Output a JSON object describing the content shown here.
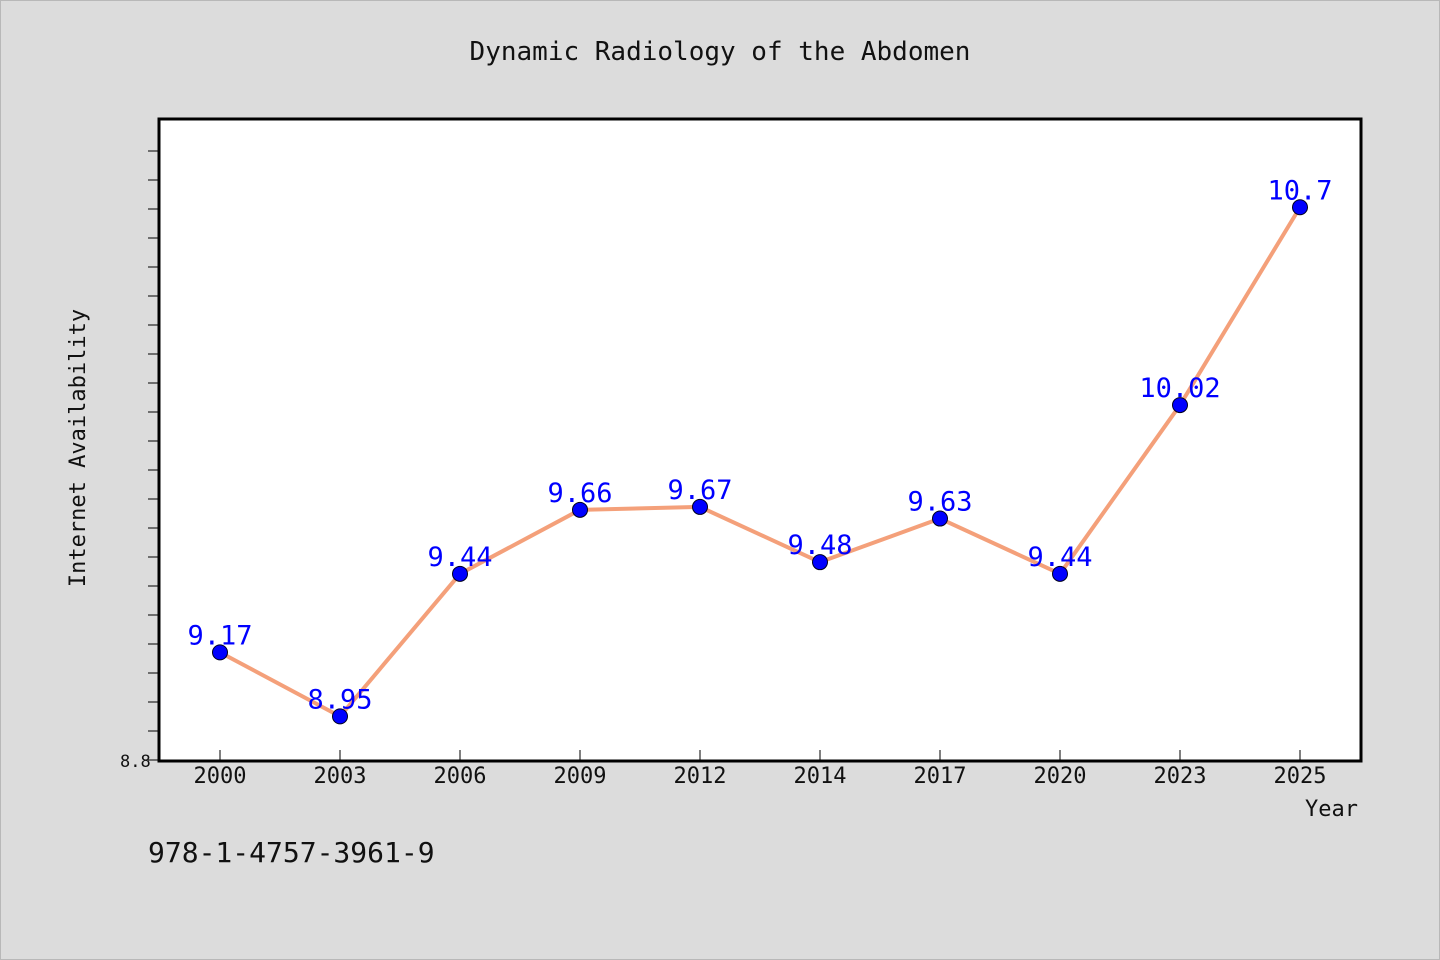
{
  "chart_data": {
    "type": "line",
    "title": "Dynamic Radiology of the Abdomen",
    "xlabel": "Year",
    "ylabel": "Internet Availability",
    "categories": [
      "2000",
      "2003",
      "2006",
      "2009",
      "2012",
      "2014",
      "2017",
      "2020",
      "2023",
      "2025"
    ],
    "series": [
      {
        "values": [
          9.17,
          8.95,
          9.44,
          9.66,
          9.67,
          9.48,
          9.63,
          9.44,
          10.02,
          10.7
        ]
      }
    ],
    "ylim": [
      8.8,
      11.0
    ],
    "y_tick_label": "8.8",
    "data_labels": [
      "9.17",
      "8.95",
      "9.44",
      "9.66",
      "9.67",
      "9.48",
      "9.63",
      "9.44",
      "10.02",
      "10.7"
    ],
    "grid": false,
    "legend": "none",
    "colors": {
      "line": "#f4a07a",
      "marker": "#0000ff",
      "label": "#0000ff",
      "plot_bg": "#ffffff",
      "page_bg": "#dcdcdc"
    }
  },
  "footer_code": "978-1-4757-3961-9"
}
